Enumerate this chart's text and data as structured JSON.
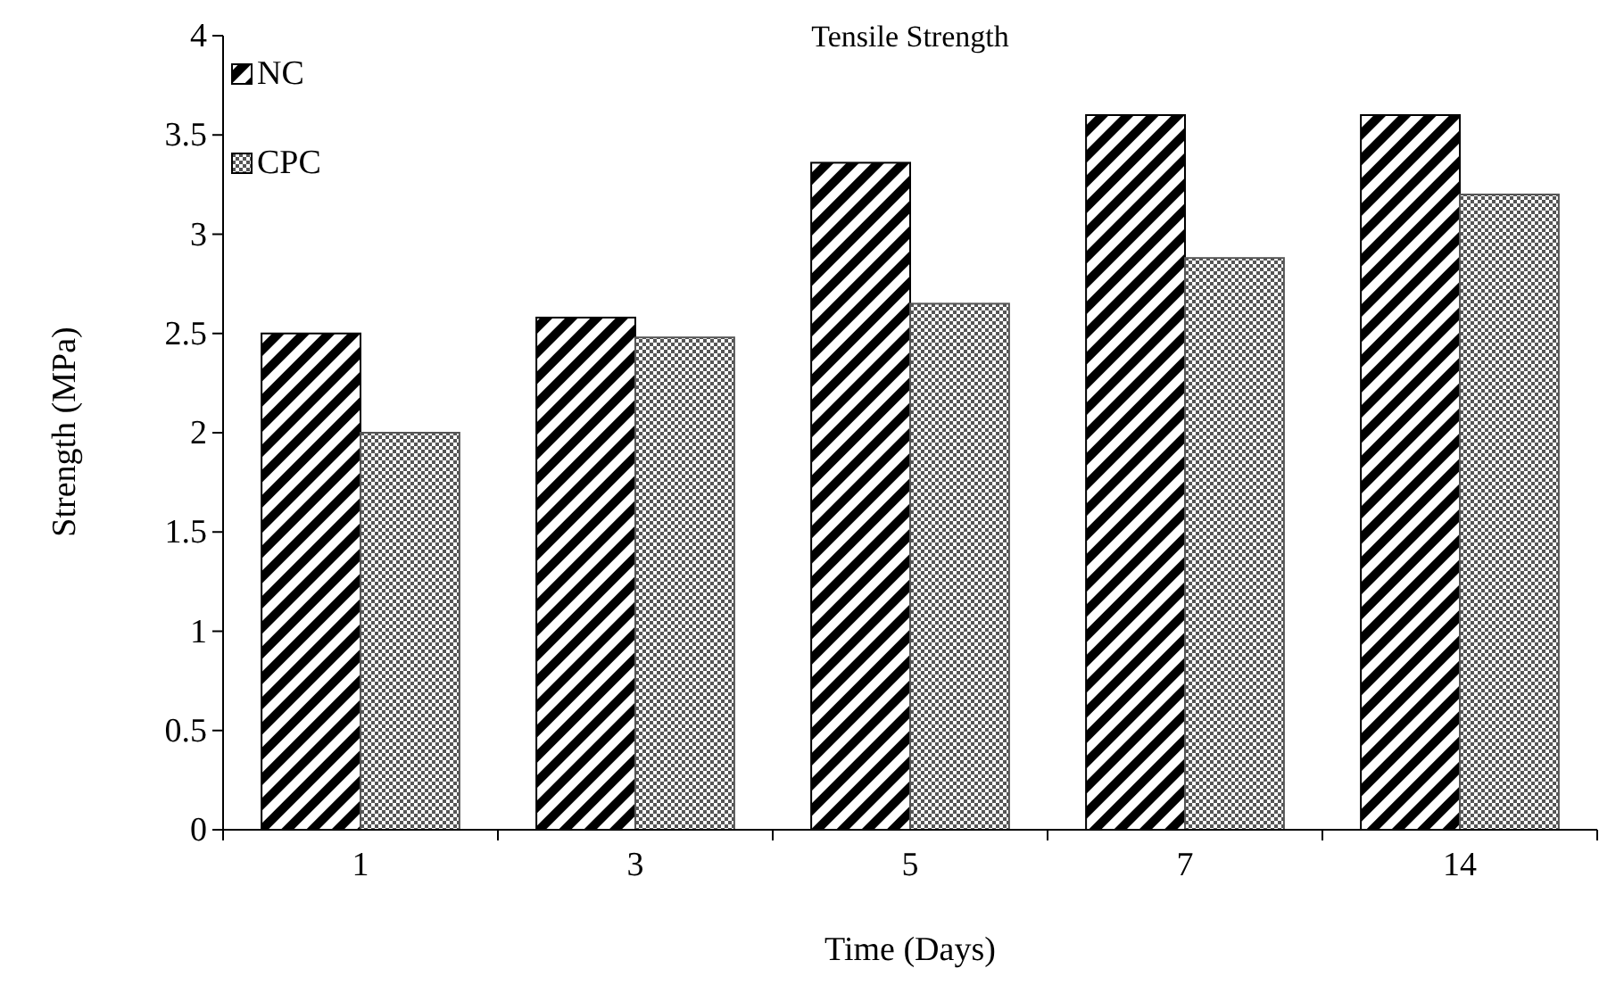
{
  "chart_data": {
    "type": "bar",
    "title": "Tensile Strength",
    "xlabel": "Time (Days)",
    "ylabel": "Strength (MPa)",
    "categories": [
      "1",
      "3",
      "5",
      "7",
      "14"
    ],
    "series": [
      {
        "name": "NC",
        "color": "#000000",
        "values": [
          2.5,
          2.58,
          3.36,
          3.6,
          3.6
        ]
      },
      {
        "name": "CPC",
        "color": "#555555",
        "values": [
          2.0,
          2.48,
          2.65,
          2.88,
          3.2
        ]
      }
    ],
    "ylim": [
      0,
      4
    ],
    "yticks": [
      0,
      {
        "value": 0.5,
        "label": "0.5"
      },
      1,
      {
        "value": 1.5,
        "label": "1.5"
      },
      2,
      {
        "value": 2.5,
        "label": "2.5"
      },
      3,
      {
        "value": 3.5,
        "label": "3.5"
      },
      4
    ],
    "grid": false,
    "legend": "top left"
  }
}
